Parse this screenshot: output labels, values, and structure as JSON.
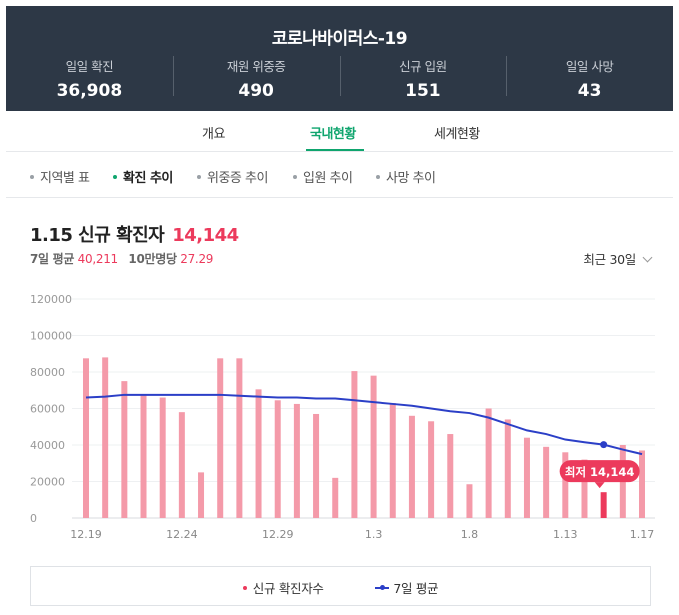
{
  "header": {
    "title": "코로나바이러스-19",
    "stats": [
      {
        "label": "일일 확진",
        "value": "36,908"
      },
      {
        "label": "재원 위중증",
        "value": "490"
      },
      {
        "label": "신규 입원",
        "value": "151"
      },
      {
        "label": "일일 사망",
        "value": "43"
      }
    ]
  },
  "tabs": [
    "개요",
    "국내현황",
    "세계현황"
  ],
  "active_tab": "국내현황",
  "subtabs": [
    "지역별 표",
    "확진 추이",
    "위중증 추이",
    "입원 추이",
    "사망 추이"
  ],
  "active_subtab": "확진 추이",
  "period_label": "최근 30일",
  "colors": {
    "bar": "#f49aa9",
    "highlight": "#ec3a5c",
    "line": "#2b3fc7",
    "header_bg": "#2d3846",
    "accent": "#0fa56e"
  },
  "chart_data": {
    "type": "bar",
    "title": "1.15 신규 확진자",
    "title_value": "14,144",
    "subtitle": {
      "avg_label": "7일 평균",
      "avg_value": "40,211",
      "per_label": "10만명당",
      "per_value": "27.29"
    },
    "x": [
      "12.19",
      "12.20",
      "12.21",
      "12.22",
      "12.23",
      "12.24",
      "12.25",
      "12.26",
      "12.27",
      "12.28",
      "12.29",
      "12.30",
      "12.31",
      "1.1",
      "1.2",
      "1.3",
      "1.4",
      "1.5",
      "1.6",
      "1.7",
      "1.8",
      "1.9",
      "1.10",
      "1.11",
      "1.12",
      "1.13",
      "1.14",
      "1.15",
      "1.16",
      "1.17"
    ],
    "x_tick_labels": [
      {
        "index": 0,
        "label": "12.19"
      },
      {
        "index": 5,
        "label": "12.24"
      },
      {
        "index": 10,
        "label": "12.29"
      },
      {
        "index": 15,
        "label": "1.3"
      },
      {
        "index": 20,
        "label": "1.8"
      },
      {
        "index": 25,
        "label": "1.13"
      },
      {
        "index": 29,
        "label": "1.17"
      }
    ],
    "series": [
      {
        "name": "신규 확진자수",
        "type": "bar",
        "values": [
          87500,
          88000,
          75000,
          67500,
          66000,
          58000,
          25000,
          87500,
          87500,
          70500,
          64500,
          62500,
          57000,
          22000,
          80500,
          78000,
          63000,
          56000,
          53000,
          46000,
          18500,
          60000,
          54000,
          44000,
          39000,
          36000,
          32000,
          14144,
          40000,
          37000
        ]
      },
      {
        "name": "7일 평균",
        "type": "line",
        "values": [
          66000,
          66500,
          67500,
          67500,
          67500,
          67500,
          67500,
          67500,
          67000,
          66500,
          66000,
          66000,
          65500,
          65500,
          64500,
          63500,
          62500,
          61500,
          60000,
          58500,
          57500,
          55000,
          51500,
          48000,
          46000,
          43000,
          41500,
          40211,
          37500,
          35000
        ]
      }
    ],
    "highlight": {
      "index": 27,
      "label": "최저",
      "value": "14,144"
    },
    "ylim": [
      0,
      120000
    ],
    "y_ticks": [
      "0",
      "20000",
      "40000",
      "60000",
      "80000",
      "100000",
      "120000"
    ],
    "grid": true,
    "legend": {
      "position": "bottom",
      "items": [
        "신규 확진자수",
        "7일 평균"
      ]
    }
  }
}
